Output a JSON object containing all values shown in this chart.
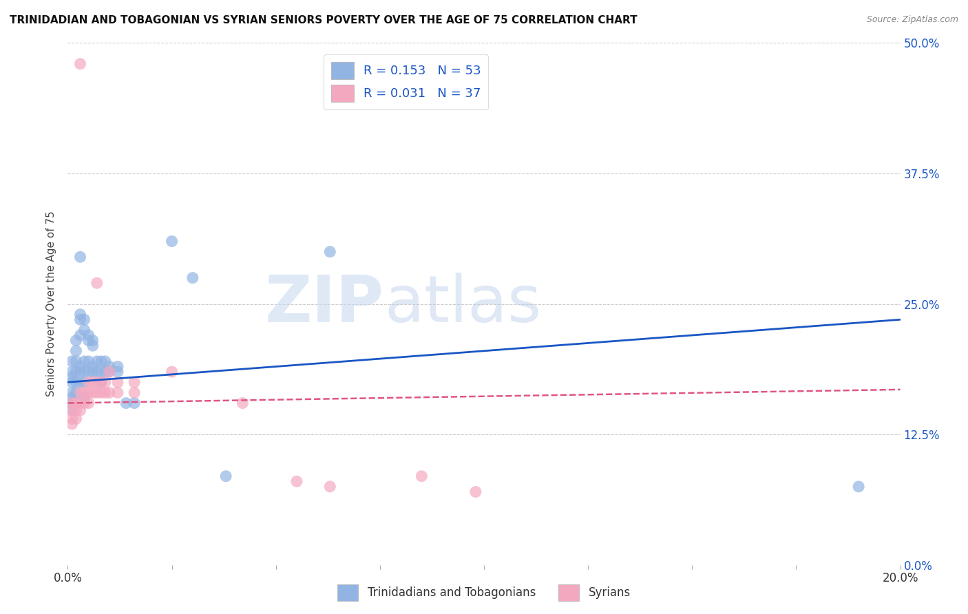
{
  "title": "TRINIDADIAN AND TOBAGONIAN VS SYRIAN SENIORS POVERTY OVER THE AGE OF 75 CORRELATION CHART",
  "source": "Source: ZipAtlas.com",
  "ylabel": "Seniors Poverty Over the Age of 75",
  "xlabel_vals": [
    0.0,
    0.025,
    0.05,
    0.075,
    0.1,
    0.125,
    0.15,
    0.175,
    0.2
  ],
  "xlabel_show": {
    "0.0": "0.0%",
    "0.20": "20.0%"
  },
  "ylabel_vals": [
    0.0,
    0.125,
    0.25,
    0.375,
    0.5
  ],
  "ylabel_ticks": [
    "0.0%",
    "12.5%",
    "25.0%",
    "37.5%",
    "50.0%"
  ],
  "xlim": [
    0.0,
    0.2
  ],
  "ylim": [
    0.0,
    0.5
  ],
  "blue_R": 0.153,
  "blue_N": 53,
  "pink_R": 0.031,
  "pink_N": 37,
  "blue_color": "#92b4e3",
  "pink_color": "#f4a8c0",
  "blue_line_color": "#1a56c4",
  "pink_line_color": "#e05580",
  "watermark_zip": "ZIP",
  "watermark_atlas": "atlas",
  "blue_trend": [
    0.0,
    0.175,
    0.2,
    0.235
  ],
  "pink_trend": [
    0.0,
    0.155,
    0.2,
    0.168
  ],
  "blue_points": [
    [
      0.001,
      0.195
    ],
    [
      0.001,
      0.185
    ],
    [
      0.001,
      0.18
    ],
    [
      0.001,
      0.175
    ],
    [
      0.001,
      0.165
    ],
    [
      0.001,
      0.16
    ],
    [
      0.001,
      0.155
    ],
    [
      0.001,
      0.148
    ],
    [
      0.002,
      0.215
    ],
    [
      0.002,
      0.205
    ],
    [
      0.002,
      0.195
    ],
    [
      0.002,
      0.185
    ],
    [
      0.002,
      0.175
    ],
    [
      0.002,
      0.165
    ],
    [
      0.003,
      0.295
    ],
    [
      0.003,
      0.24
    ],
    [
      0.003,
      0.235
    ],
    [
      0.003,
      0.22
    ],
    [
      0.003,
      0.19
    ],
    [
      0.003,
      0.185
    ],
    [
      0.003,
      0.175
    ],
    [
      0.004,
      0.235
    ],
    [
      0.004,
      0.225
    ],
    [
      0.004,
      0.195
    ],
    [
      0.004,
      0.185
    ],
    [
      0.004,
      0.175
    ],
    [
      0.004,
      0.16
    ],
    [
      0.005,
      0.22
    ],
    [
      0.005,
      0.215
    ],
    [
      0.005,
      0.195
    ],
    [
      0.005,
      0.185
    ],
    [
      0.006,
      0.215
    ],
    [
      0.006,
      0.21
    ],
    [
      0.006,
      0.19
    ],
    [
      0.006,
      0.185
    ],
    [
      0.007,
      0.195
    ],
    [
      0.007,
      0.185
    ],
    [
      0.008,
      0.195
    ],
    [
      0.008,
      0.185
    ],
    [
      0.008,
      0.175
    ],
    [
      0.009,
      0.195
    ],
    [
      0.009,
      0.185
    ],
    [
      0.01,
      0.19
    ],
    [
      0.01,
      0.185
    ],
    [
      0.012,
      0.19
    ],
    [
      0.012,
      0.185
    ],
    [
      0.014,
      0.155
    ],
    [
      0.016,
      0.155
    ],
    [
      0.025,
      0.31
    ],
    [
      0.03,
      0.275
    ],
    [
      0.038,
      0.085
    ],
    [
      0.063,
      0.3
    ],
    [
      0.19,
      0.075
    ]
  ],
  "pink_points": [
    [
      0.001,
      0.155
    ],
    [
      0.001,
      0.148
    ],
    [
      0.001,
      0.14
    ],
    [
      0.001,
      0.135
    ],
    [
      0.002,
      0.155
    ],
    [
      0.002,
      0.148
    ],
    [
      0.002,
      0.14
    ],
    [
      0.003,
      0.165
    ],
    [
      0.003,
      0.155
    ],
    [
      0.003,
      0.148
    ],
    [
      0.004,
      0.165
    ],
    [
      0.004,
      0.155
    ],
    [
      0.005,
      0.175
    ],
    [
      0.005,
      0.165
    ],
    [
      0.005,
      0.155
    ],
    [
      0.006,
      0.175
    ],
    [
      0.006,
      0.165
    ],
    [
      0.007,
      0.27
    ],
    [
      0.007,
      0.175
    ],
    [
      0.007,
      0.165
    ],
    [
      0.008,
      0.175
    ],
    [
      0.008,
      0.165
    ],
    [
      0.009,
      0.175
    ],
    [
      0.009,
      0.165
    ],
    [
      0.01,
      0.185
    ],
    [
      0.01,
      0.165
    ],
    [
      0.012,
      0.175
    ],
    [
      0.012,
      0.165
    ],
    [
      0.016,
      0.175
    ],
    [
      0.016,
      0.165
    ],
    [
      0.025,
      0.185
    ],
    [
      0.042,
      0.155
    ],
    [
      0.055,
      0.08
    ],
    [
      0.063,
      0.075
    ],
    [
      0.085,
      0.085
    ],
    [
      0.098,
      0.07
    ],
    [
      0.003,
      0.48
    ]
  ]
}
